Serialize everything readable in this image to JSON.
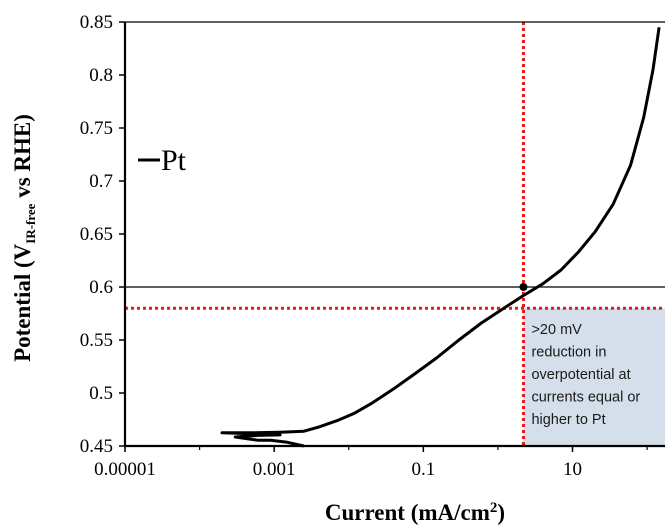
{
  "chart_data": {
    "type": "line",
    "xlabel": "Current (mA/cm",
    "xlabel_superscript": "2",
    "xlabel_close": ")",
    "ylabel_prefix": "Potential (V",
    "ylabel_subscript": "IR-free",
    "ylabel_suffix": " vs RHE)",
    "x_scale": "log",
    "xlim": [
      1e-05,
      200
    ],
    "ylim": [
      0.45,
      0.85
    ],
    "x_ticks": [
      {
        "value": 1e-05,
        "label": "0.00001"
      },
      {
        "value": 0.001,
        "label": "0.001"
      },
      {
        "value": 0.1,
        "label": "0.1"
      },
      {
        "value": 10,
        "label": "10"
      }
    ],
    "y_ticks": [
      {
        "value": 0.45,
        "label": "0.45"
      },
      {
        "value": 0.5,
        "label": "0.5"
      },
      {
        "value": 0.55,
        "label": "0.55"
      },
      {
        "value": 0.6,
        "label": "0.6"
      },
      {
        "value": 0.65,
        "label": "0.65"
      },
      {
        "value": 0.7,
        "label": "0.7"
      },
      {
        "value": 0.75,
        "label": "0.75"
      },
      {
        "value": 0.8,
        "label": "0.8"
      },
      {
        "value": 0.85,
        "label": "0.85"
      }
    ],
    "grid": false,
    "legend": {
      "marker": "line",
      "label": "Pt",
      "position": "upper-left"
    },
    "series": [
      {
        "name": "Pt",
        "color": "#000000",
        "points": [
          [
            0.0025,
            0.45
          ],
          [
            0.0015,
            0.4535
          ],
          [
            0.0009,
            0.4555
          ],
          [
            0.0006,
            0.4555
          ],
          [
            0.0003,
            0.4585
          ],
          [
            0.0006,
            0.46
          ],
          [
            0.0012,
            0.4605
          ],
          [
            0.0008,
            0.461
          ],
          [
            0.0002,
            0.4625
          ],
          [
            0.0005,
            0.4625
          ],
          [
            0.0012,
            0.463
          ],
          [
            0.0025,
            0.464
          ],
          [
            0.004,
            0.468
          ],
          [
            0.007,
            0.474
          ],
          [
            0.012,
            0.481
          ],
          [
            0.02,
            0.49
          ],
          [
            0.04,
            0.504
          ],
          [
            0.08,
            0.519
          ],
          [
            0.15,
            0.533
          ],
          [
            0.3,
            0.55
          ],
          [
            0.6,
            0.566
          ],
          [
            1.2,
            0.58
          ],
          [
            2.2,
            0.592
          ],
          [
            4.0,
            0.603
          ],
          [
            7.0,
            0.616
          ],
          [
            12,
            0.633
          ],
          [
            20,
            0.652
          ],
          [
            35,
            0.678
          ],
          [
            60,
            0.715
          ],
          [
            90,
            0.76
          ],
          [
            120,
            0.805
          ],
          [
            145,
            0.845
          ]
        ]
      }
    ],
    "reference_lines": [
      {
        "orientation": "horizontal",
        "value": 0.6,
        "style": "solid",
        "color": "#000000"
      },
      {
        "orientation": "horizontal",
        "value": 0.58,
        "style": "dotted",
        "color": "#e41a1c"
      },
      {
        "orientation": "vertical",
        "value": 2.2,
        "style": "dotted",
        "color": "#e41a1c"
      }
    ],
    "intersection_point": {
      "x": 2.2,
      "y": 0.6
    },
    "shaded_region": {
      "x_from": 2.2,
      "y_to": 0.58,
      "color": "#d5dfeb"
    },
    "annotation": {
      "lines": [
        ">20 mV",
        "reduction in",
        "overpotential at",
        "currents equal or",
        "higher to Pt"
      ]
    }
  }
}
